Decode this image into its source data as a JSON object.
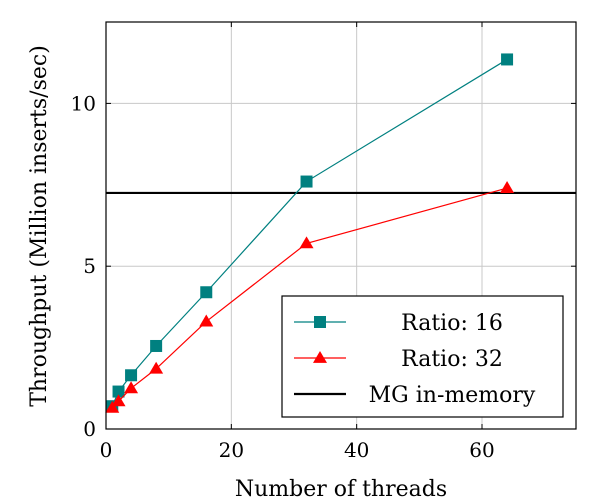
{
  "chart_data": {
    "type": "line",
    "xlabel": "Number of threads",
    "ylabel": "Throughput (Million inserts/sec)",
    "xlim": [
      0,
      75
    ],
    "ylim": [
      0,
      12.5
    ],
    "x_ticks": [
      0,
      20,
      40,
      60
    ],
    "y_ticks": [
      0,
      5,
      10
    ],
    "grid": true,
    "legend_position": "bottom-right",
    "series": [
      {
        "name": "Ratio: 16",
        "color": "#008080",
        "marker": "square",
        "x": [
          1,
          2,
          4,
          8,
          16,
          32,
          64
        ],
        "y": [
          0.7,
          1.15,
          1.65,
          2.55,
          4.2,
          7.6,
          11.35
        ]
      },
      {
        "name": "Ratio: 32",
        "color": "#ff0000",
        "marker": "triangle",
        "x": [
          1,
          2,
          4,
          8,
          16,
          32,
          64
        ],
        "y": [
          0.65,
          0.85,
          1.25,
          1.85,
          3.3,
          5.7,
          7.4
        ]
      }
    ],
    "reference_lines": [
      {
        "name": "MG in-memory",
        "y": 7.25,
        "color": "#000000"
      }
    ]
  }
}
